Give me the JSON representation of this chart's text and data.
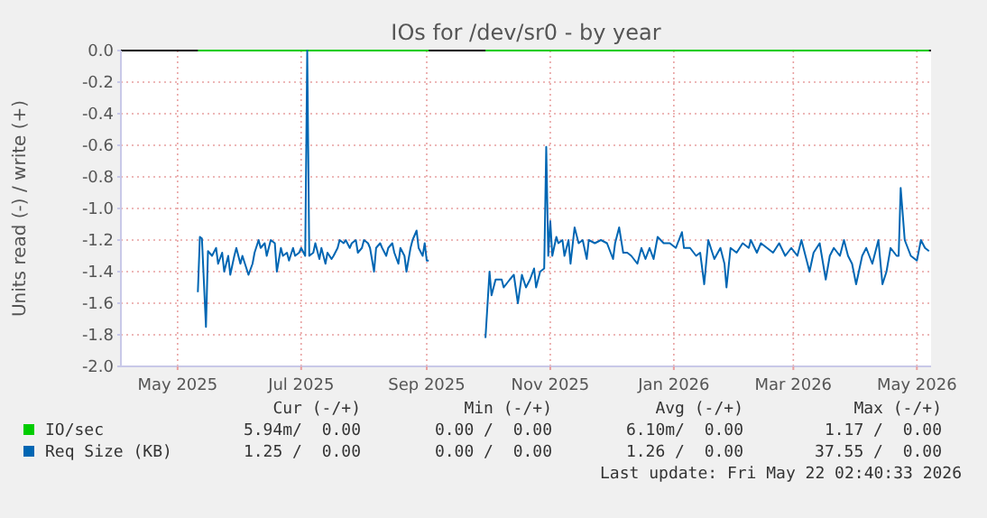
{
  "chart_data": {
    "type": "line",
    "title": "IOs for /dev/sr0 - by year",
    "ylabel": "Units read (-) / write (+)",
    "xlim": [
      "2025-04-17",
      "2026-05-22"
    ],
    "xticks": [
      {
        "value": "2025-05-15",
        "label": "May 2025"
      },
      {
        "value": "2025-07-15",
        "label": "Jul 2025"
      },
      {
        "value": "2025-09-15",
        "label": "Sep 2025"
      },
      {
        "value": "2025-11-15",
        "label": "Nov 2025"
      },
      {
        "value": "2026-01-15",
        "label": "Jan 2026"
      },
      {
        "value": "2026-03-15",
        "label": "Mar 2026"
      },
      {
        "value": "2026-05-15",
        "label": "May 2026"
      }
    ],
    "ylim": [
      -2,
      0
    ],
    "yticks": [
      {
        "value": 0,
        "label": "0.0"
      },
      -0.2,
      -0.4,
      -0.6,
      -0.8,
      {
        "value": -1,
        "label": "-1.0"
      },
      -1.2,
      -1.4,
      -1.6,
      -1.8,
      {
        "value": -2,
        "label": "-2.0"
      }
    ],
    "grid": true,
    "legend": "bottom",
    "ref_lines": [
      {
        "axis": "y",
        "value": 0,
        "color": "#000000"
      }
    ],
    "series": [
      {
        "name": "IO/sec",
        "color": "#00cc00",
        "x": [
          "2025-05-25",
          "2025-09-16",
          "2025-10-01",
          "2025-10-14",
          "2026-05-21"
        ],
        "values": [
          0,
          0,
          null,
          0,
          0
        ]
      },
      {
        "name": "Req Size (KB)",
        "color": "#0066b3",
        "x": [
          "2025-05-25",
          "2025-05-26",
          "2025-05-27",
          "2025-05-29",
          "2025-05-30",
          "2025-06-01",
          "2025-06-03",
          "2025-06-04",
          "2025-06-06",
          "2025-06-07",
          "2025-06-09",
          "2025-06-10",
          "2025-06-12",
          "2025-06-13",
          "2025-06-15",
          "2025-06-16",
          "2025-06-18",
          "2025-06-19",
          "2025-06-21",
          "2025-06-22",
          "2025-06-24",
          "2025-06-25",
          "2025-06-27",
          "2025-06-28",
          "2025-06-30",
          "2025-07-02",
          "2025-07-03",
          "2025-07-05",
          "2025-07-06",
          "2025-07-08",
          "2025-07-09",
          "2025-07-11",
          "2025-07-12",
          "2025-07-14",
          "2025-07-15",
          "2025-07-17",
          "2025-07-18",
          "2025-07-19",
          "2025-07-21",
          "2025-07-22",
          "2025-07-24",
          "2025-07-25",
          "2025-07-27",
          "2025-07-28",
          "2025-07-30",
          "2025-07-31",
          "2025-08-02",
          "2025-08-03",
          "2025-08-05",
          "2025-08-06",
          "2025-08-08",
          "2025-08-09",
          "2025-08-11",
          "2025-08-12",
          "2025-08-14",
          "2025-08-15",
          "2025-08-17",
          "2025-08-18",
          "2025-08-20",
          "2025-08-21",
          "2025-08-23",
          "2025-08-24",
          "2025-08-26",
          "2025-08-27",
          "2025-08-29",
          "2025-08-30",
          "2025-09-01",
          "2025-09-02",
          "2025-09-04",
          "2025-09-05",
          "2025-09-07",
          "2025-09-08",
          "2025-09-10",
          "2025-09-11",
          "2025-09-13",
          "2025-09-14",
          "2025-09-15",
          "2025-09-16",
          "2025-10-01",
          "2025-10-14",
          "2025-10-16",
          "2025-10-17",
          "2025-10-19",
          "2025-10-22",
          "2025-10-23",
          "2025-10-26",
          "2025-10-28",
          "2025-10-30",
          "2025-11-01",
          "2025-11-03",
          "2025-11-05",
          "2025-11-07",
          "2025-11-08",
          "2025-11-10",
          "2025-11-12",
          "2025-11-13",
          "2025-11-14",
          "2025-11-15",
          "2025-11-16",
          "2025-11-18",
          "2025-11-19",
          "2025-11-21",
          "2025-11-22",
          "2025-11-24",
          "2025-11-25",
          "2025-11-27",
          "2025-11-29",
          "2025-12-01",
          "2025-12-03",
          "2025-12-04",
          "2025-12-07",
          "2025-12-10",
          "2025-12-13",
          "2025-12-16",
          "2025-12-17",
          "2025-12-19",
          "2025-12-21",
          "2025-12-23",
          "2025-12-25",
          "2025-12-28",
          "2025-12-30",
          "2026-01-01",
          "2026-01-03",
          "2026-01-05",
          "2026-01-07",
          "2026-01-10",
          "2026-01-13",
          "2026-01-16",
          "2026-01-19",
          "2026-01-20",
          "2026-01-23",
          "2026-01-26",
          "2026-01-28",
          "2026-01-30",
          "2026-02-01",
          "2026-02-04",
          "2026-02-07",
          "2026-02-09",
          "2026-02-10",
          "2026-02-12",
          "2026-02-15",
          "2026-02-18",
          "2026-02-21",
          "2026-02-22",
          "2026-02-25",
          "2026-02-27",
          "2026-03-02",
          "2026-03-05",
          "2026-03-08",
          "2026-03-11",
          "2026-03-14",
          "2026-03-17",
          "2026-03-19",
          "2026-03-21",
          "2026-03-23",
          "2026-03-25",
          "2026-03-28",
          "2026-03-31",
          "2026-04-02",
          "2026-04-04",
          "2026-04-07",
          "2026-04-09",
          "2026-04-11",
          "2026-04-13",
          "2026-04-15",
          "2026-04-18",
          "2026-04-20",
          "2026-04-23",
          "2026-04-26",
          "2026-04-28",
          "2026-04-30",
          "2026-05-02",
          "2026-05-05",
          "2026-05-06",
          "2026-05-07",
          "2026-05-09",
          "2026-05-12",
          "2026-05-15",
          "2026-05-17",
          "2026-05-19",
          "2026-05-21"
        ],
        "values": [
          -1.53,
          -1.18,
          -1.19,
          -1.75,
          -1.27,
          -1.3,
          -1.25,
          -1.35,
          -1.28,
          -1.4,
          -1.3,
          -1.42,
          -1.3,
          -1.25,
          -1.35,
          -1.3,
          -1.38,
          -1.42,
          -1.35,
          -1.28,
          -1.2,
          -1.25,
          -1.22,
          -1.3,
          -1.2,
          -1.22,
          -1.4,
          -1.25,
          -1.3,
          -1.28,
          -1.33,
          -1.25,
          -1.3,
          -1.28,
          -1.25,
          -1.3,
          0,
          -1.3,
          -1.28,
          -1.22,
          -1.32,
          -1.25,
          -1.35,
          -1.28,
          -1.32,
          -1.3,
          -1.25,
          -1.2,
          -1.22,
          -1.2,
          -1.25,
          -1.22,
          -1.2,
          -1.28,
          -1.25,
          -1.2,
          -1.22,
          -1.25,
          -1.4,
          -1.25,
          -1.22,
          -1.25,
          -1.3,
          -1.25,
          -1.22,
          -1.28,
          -1.35,
          -1.25,
          -1.3,
          -1.4,
          -1.25,
          -1.2,
          -1.14,
          -1.25,
          -1.3,
          -1.22,
          -1.33,
          -1.33,
          null,
          -1.82,
          -1.4,
          -1.55,
          -1.45,
          -1.45,
          -1.5,
          -1.45,
          -1.42,
          -1.6,
          -1.42,
          -1.5,
          -1.45,
          -1.38,
          -1.5,
          -1.4,
          -1.38,
          -0.61,
          -1.3,
          -1.08,
          -1.3,
          -1.18,
          -1.22,
          -1.2,
          -1.3,
          -1.2,
          -1.35,
          -1.12,
          -1.22,
          -1.2,
          -1.32,
          -1.2,
          -1.22,
          -1.2,
          -1.22,
          -1.32,
          -1.22,
          -1.12,
          -1.28,
          -1.28,
          -1.3,
          -1.35,
          -1.25,
          -1.32,
          -1.25,
          -1.32,
          -1.18,
          -1.22,
          -1.22,
          -1.25,
          -1.15,
          -1.25,
          -1.25,
          -1.3,
          -1.28,
          -1.48,
          -1.2,
          -1.32,
          -1.25,
          -1.35,
          -1.5,
          -1.25,
          -1.28,
          -1.22,
          -1.25,
          -1.2,
          -1.28,
          -1.22,
          -1.25,
          -1.28,
          -1.22,
          -1.3,
          -1.25,
          -1.3,
          -1.2,
          -1.3,
          -1.4,
          -1.28,
          -1.22,
          -1.45,
          -1.3,
          -1.25,
          -1.3,
          -1.2,
          -1.3,
          -1.35,
          -1.48,
          -1.3,
          -1.25,
          -1.35,
          -1.2,
          -1.48,
          -1.4,
          -1.25,
          -1.3,
          -1.3,
          -0.87,
          -1.2,
          -1.3,
          -1.33,
          -1.2,
          -1.25,
          -1.27
        ]
      }
    ],
    "annotations": [
      "Cur (-/+)",
      "Min (-/+)",
      "Avg (-/+)",
      "Max (-/+)",
      "5.94m/  0.00",
      "0.00 /  0.00",
      "6.10m/  0.00",
      "1.17 /  0.00",
      "1.25 /  0.00",
      "0.00 /  0.00",
      "1.26 /  0.00",
      "37.55 /  0.00",
      "Last update: Fri May 22 02:40:33 2026"
    ]
  }
}
